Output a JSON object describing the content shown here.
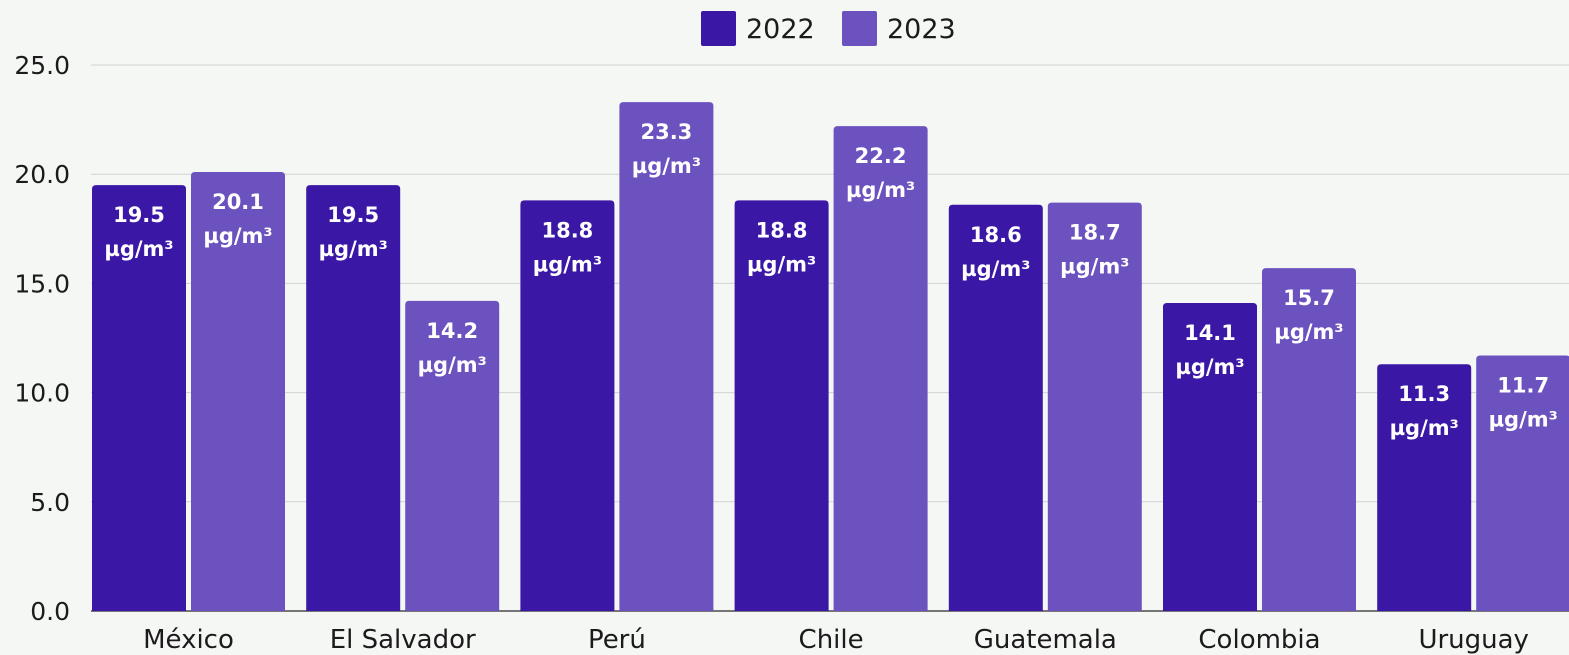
{
  "chart_data": {
    "type": "bar",
    "categories": [
      "México",
      "El Salvador",
      "Perú",
      "Chile",
      "Guatemala",
      "Colombia",
      "Uruguay"
    ],
    "series": [
      {
        "name": "2022",
        "color": "#3a17a4",
        "values": [
          19.5,
          19.5,
          18.8,
          18.8,
          18.6,
          14.1,
          11.3
        ]
      },
      {
        "name": "2023",
        "color": "#6c52be",
        "values": [
          20.1,
          14.2,
          23.3,
          22.2,
          18.7,
          15.7,
          11.7
        ]
      }
    ],
    "unit": "µg/m³",
    "ylim": [
      0,
      25
    ],
    "yticks": [
      "0.0",
      "5.0",
      "10.0",
      "15.0",
      "20.0",
      "25.0"
    ],
    "grid": true,
    "legend_position": "top-center",
    "title": "",
    "xlabel": "",
    "ylabel": ""
  }
}
